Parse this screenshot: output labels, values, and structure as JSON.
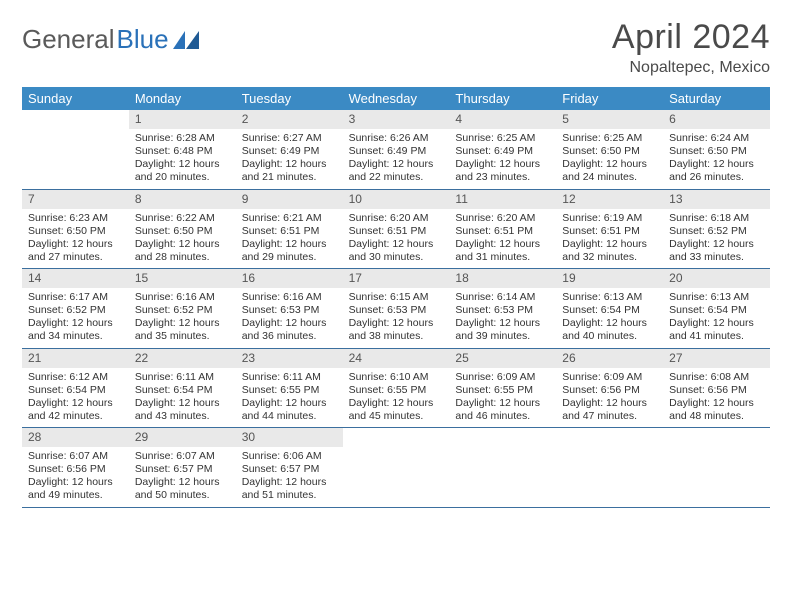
{
  "brand": {
    "general": "General",
    "blue": "Blue"
  },
  "title": "April 2024",
  "subtitle": "Nopaltepec, Mexico",
  "colors": {
    "header_bg": "#3b8ac4",
    "header_text": "#ffffff",
    "daynum_bg": "#e9e9e9",
    "week_border": "#3b6f9e",
    "title_color": "#4a4a4a",
    "body_text": "#333333",
    "logo_gray": "#5a5a5a",
    "logo_blue": "#2a71b8",
    "background": "#ffffff"
  },
  "day_headers": [
    "Sunday",
    "Monday",
    "Tuesday",
    "Wednesday",
    "Thursday",
    "Friday",
    "Saturday"
  ],
  "weeks": [
    [
      {
        "n": "",
        "sunrise": "",
        "sunset": "",
        "daylight": ""
      },
      {
        "n": "1",
        "sunrise": "Sunrise: 6:28 AM",
        "sunset": "Sunset: 6:48 PM",
        "daylight": "Daylight: 12 hours and 20 minutes."
      },
      {
        "n": "2",
        "sunrise": "Sunrise: 6:27 AM",
        "sunset": "Sunset: 6:49 PM",
        "daylight": "Daylight: 12 hours and 21 minutes."
      },
      {
        "n": "3",
        "sunrise": "Sunrise: 6:26 AM",
        "sunset": "Sunset: 6:49 PM",
        "daylight": "Daylight: 12 hours and 22 minutes."
      },
      {
        "n": "4",
        "sunrise": "Sunrise: 6:25 AM",
        "sunset": "Sunset: 6:49 PM",
        "daylight": "Daylight: 12 hours and 23 minutes."
      },
      {
        "n": "5",
        "sunrise": "Sunrise: 6:25 AM",
        "sunset": "Sunset: 6:50 PM",
        "daylight": "Daylight: 12 hours and 24 minutes."
      },
      {
        "n": "6",
        "sunrise": "Sunrise: 6:24 AM",
        "sunset": "Sunset: 6:50 PM",
        "daylight": "Daylight: 12 hours and 26 minutes."
      }
    ],
    [
      {
        "n": "7",
        "sunrise": "Sunrise: 6:23 AM",
        "sunset": "Sunset: 6:50 PM",
        "daylight": "Daylight: 12 hours and 27 minutes."
      },
      {
        "n": "8",
        "sunrise": "Sunrise: 6:22 AM",
        "sunset": "Sunset: 6:50 PM",
        "daylight": "Daylight: 12 hours and 28 minutes."
      },
      {
        "n": "9",
        "sunrise": "Sunrise: 6:21 AM",
        "sunset": "Sunset: 6:51 PM",
        "daylight": "Daylight: 12 hours and 29 minutes."
      },
      {
        "n": "10",
        "sunrise": "Sunrise: 6:20 AM",
        "sunset": "Sunset: 6:51 PM",
        "daylight": "Daylight: 12 hours and 30 minutes."
      },
      {
        "n": "11",
        "sunrise": "Sunrise: 6:20 AM",
        "sunset": "Sunset: 6:51 PM",
        "daylight": "Daylight: 12 hours and 31 minutes."
      },
      {
        "n": "12",
        "sunrise": "Sunrise: 6:19 AM",
        "sunset": "Sunset: 6:51 PM",
        "daylight": "Daylight: 12 hours and 32 minutes."
      },
      {
        "n": "13",
        "sunrise": "Sunrise: 6:18 AM",
        "sunset": "Sunset: 6:52 PM",
        "daylight": "Daylight: 12 hours and 33 minutes."
      }
    ],
    [
      {
        "n": "14",
        "sunrise": "Sunrise: 6:17 AM",
        "sunset": "Sunset: 6:52 PM",
        "daylight": "Daylight: 12 hours and 34 minutes."
      },
      {
        "n": "15",
        "sunrise": "Sunrise: 6:16 AM",
        "sunset": "Sunset: 6:52 PM",
        "daylight": "Daylight: 12 hours and 35 minutes."
      },
      {
        "n": "16",
        "sunrise": "Sunrise: 6:16 AM",
        "sunset": "Sunset: 6:53 PM",
        "daylight": "Daylight: 12 hours and 36 minutes."
      },
      {
        "n": "17",
        "sunrise": "Sunrise: 6:15 AM",
        "sunset": "Sunset: 6:53 PM",
        "daylight": "Daylight: 12 hours and 38 minutes."
      },
      {
        "n": "18",
        "sunrise": "Sunrise: 6:14 AM",
        "sunset": "Sunset: 6:53 PM",
        "daylight": "Daylight: 12 hours and 39 minutes."
      },
      {
        "n": "19",
        "sunrise": "Sunrise: 6:13 AM",
        "sunset": "Sunset: 6:54 PM",
        "daylight": "Daylight: 12 hours and 40 minutes."
      },
      {
        "n": "20",
        "sunrise": "Sunrise: 6:13 AM",
        "sunset": "Sunset: 6:54 PM",
        "daylight": "Daylight: 12 hours and 41 minutes."
      }
    ],
    [
      {
        "n": "21",
        "sunrise": "Sunrise: 6:12 AM",
        "sunset": "Sunset: 6:54 PM",
        "daylight": "Daylight: 12 hours and 42 minutes."
      },
      {
        "n": "22",
        "sunrise": "Sunrise: 6:11 AM",
        "sunset": "Sunset: 6:54 PM",
        "daylight": "Daylight: 12 hours and 43 minutes."
      },
      {
        "n": "23",
        "sunrise": "Sunrise: 6:11 AM",
        "sunset": "Sunset: 6:55 PM",
        "daylight": "Daylight: 12 hours and 44 minutes."
      },
      {
        "n": "24",
        "sunrise": "Sunrise: 6:10 AM",
        "sunset": "Sunset: 6:55 PM",
        "daylight": "Daylight: 12 hours and 45 minutes."
      },
      {
        "n": "25",
        "sunrise": "Sunrise: 6:09 AM",
        "sunset": "Sunset: 6:55 PM",
        "daylight": "Daylight: 12 hours and 46 minutes."
      },
      {
        "n": "26",
        "sunrise": "Sunrise: 6:09 AM",
        "sunset": "Sunset: 6:56 PM",
        "daylight": "Daylight: 12 hours and 47 minutes."
      },
      {
        "n": "27",
        "sunrise": "Sunrise: 6:08 AM",
        "sunset": "Sunset: 6:56 PM",
        "daylight": "Daylight: 12 hours and 48 minutes."
      }
    ],
    [
      {
        "n": "28",
        "sunrise": "Sunrise: 6:07 AM",
        "sunset": "Sunset: 6:56 PM",
        "daylight": "Daylight: 12 hours and 49 minutes."
      },
      {
        "n": "29",
        "sunrise": "Sunrise: 6:07 AM",
        "sunset": "Sunset: 6:57 PM",
        "daylight": "Daylight: 12 hours and 50 minutes."
      },
      {
        "n": "30",
        "sunrise": "Sunrise: 6:06 AM",
        "sunset": "Sunset: 6:57 PM",
        "daylight": "Daylight: 12 hours and 51 minutes."
      },
      {
        "n": "",
        "sunrise": "",
        "sunset": "",
        "daylight": ""
      },
      {
        "n": "",
        "sunrise": "",
        "sunset": "",
        "daylight": ""
      },
      {
        "n": "",
        "sunrise": "",
        "sunset": "",
        "daylight": ""
      },
      {
        "n": "",
        "sunrise": "",
        "sunset": "",
        "daylight": ""
      }
    ]
  ]
}
